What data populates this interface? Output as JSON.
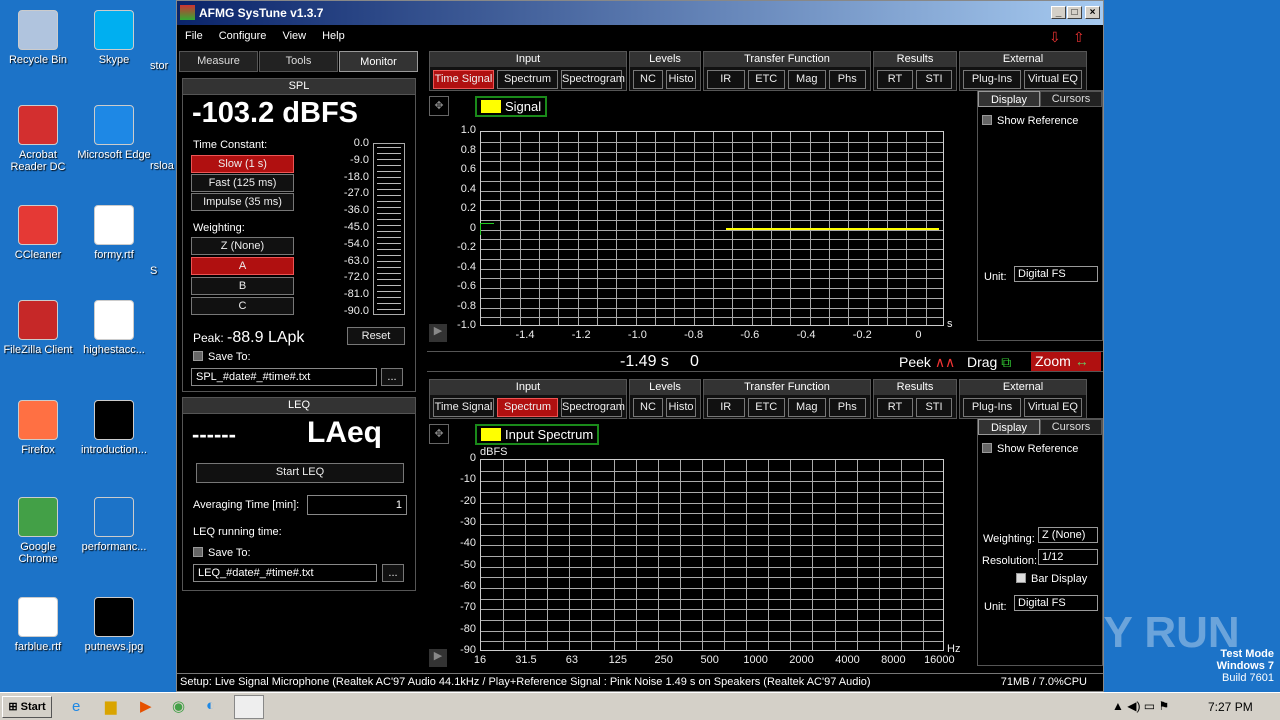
{
  "desktop": {
    "icons": [
      {
        "label": "Recycle Bin",
        "color": "#b0c4de"
      },
      {
        "label": "Skype",
        "color": "#00aff0"
      },
      {
        "label": "Acrobat Reader DC",
        "color": "#d32f2f"
      },
      {
        "label": "Microsoft Edge",
        "color": "#1e88e5"
      },
      {
        "label": "CCleaner",
        "color": "#e53935"
      },
      {
        "label": "formy.rtf",
        "color": "#ffffff"
      },
      {
        "label": "FileZilla Client",
        "color": "#c62828"
      },
      {
        "label": "highestacc...",
        "color": "#ffffff"
      },
      {
        "label": "Firefox",
        "color": "#ff7043"
      },
      {
        "label": "introduction...",
        "color": "#000000"
      },
      {
        "label": "Google Chrome",
        "color": "#43a047"
      },
      {
        "label": "performanc...",
        "color": "#1c73c8"
      },
      {
        "label": "farblue.rtf",
        "color": "#ffffff"
      },
      {
        "label": "putnews.jpg",
        "color": "#000000"
      }
    ],
    "partial": [
      "stor",
      "rsloa",
      "S"
    ]
  },
  "window": {
    "title": "AFMG SysTune v1.3.7",
    "menu": [
      "File",
      "Configure",
      "View",
      "Help"
    ]
  },
  "left": {
    "tabs": [
      "Measure",
      "Tools",
      "Monitor"
    ],
    "spl": {
      "header": "SPL",
      "value": "-103.2  dBFS",
      "time_constant_label": "Time Constant:",
      "time_constants": [
        "Slow (1 s)",
        "Fast (125 ms)",
        "Impulse (35 ms)"
      ],
      "weighting_label": "Weighting:",
      "weightings": [
        "Z (None)",
        "A",
        "B",
        "C"
      ],
      "meter_ticks": [
        "0.0",
        "-9.0",
        "-18.0",
        "-27.0",
        "-36.0",
        "-45.0",
        "-54.0",
        "-63.0",
        "-72.0",
        "-81.0",
        "-90.0"
      ],
      "peak_label": "Peak:",
      "peak_value": "-88.9 LApk",
      "reset": "Reset",
      "save_to": "Save To:",
      "file": "SPL_#date#_#time#.txt",
      "browse": "..."
    },
    "leq": {
      "header": "LEQ",
      "value": "------",
      "unit": "LAeq",
      "start": "Start LEQ",
      "averaging_label": "Averaging Time [min]:",
      "averaging_value": "1",
      "running_label": "LEQ running time:",
      "save_to": "Save To:",
      "file": "LEQ_#date#_#time#.txt",
      "browse": "..."
    }
  },
  "toolbar": {
    "groups": [
      {
        "title": "Input",
        "buttons": [
          "Time Signal",
          "Spectrum",
          "Spectrogram"
        ]
      },
      {
        "title": "Levels",
        "buttons": [
          "NC",
          "Histo"
        ]
      },
      {
        "title": "Transfer Function",
        "buttons": [
          "IR",
          "ETC",
          "Mag",
          "Phs"
        ]
      },
      {
        "title": "Results",
        "buttons": [
          "RT",
          "STI"
        ]
      },
      {
        "title": "External",
        "buttons": [
          "Plug-Ins",
          "Virtual EQ"
        ]
      }
    ]
  },
  "chart1": {
    "legend": "Signal",
    "legend_color": "#ffff00",
    "x_ticks": [
      "-1.4",
      "-1.2",
      "-1.0",
      "-0.8",
      "-0.6",
      "-0.4",
      "-0.2",
      "0"
    ],
    "x_unit": "s",
    "y_ticks": [
      "1.0",
      "0.8",
      "0.6",
      "0.4",
      "0.2",
      "0",
      "-0.2",
      "-0.4",
      "-0.6",
      "-0.8",
      "-1.0"
    ],
    "active": "Time Signal",
    "side": {
      "tabs": [
        "Display",
        "Cursors"
      ],
      "show_reference": "Show Reference",
      "unit_label": "Unit:",
      "unit": "Digital FS"
    }
  },
  "cursorbar": {
    "x": "-1.49 s",
    "y": "0",
    "peek": "Peek",
    "drag": "Drag",
    "zoom": "Zoom"
  },
  "chart2": {
    "legend": "Input Spectrum",
    "legend_color": "#ffff00",
    "y_unit": "dBFS",
    "x_unit": "Hz",
    "x_ticks": [
      "16",
      "31.5",
      "63",
      "125",
      "250",
      "500",
      "1000",
      "2000",
      "4000",
      "8000",
      "16000"
    ],
    "y_ticks": [
      "0",
      "-10",
      "-20",
      "-30",
      "-40",
      "-50",
      "-60",
      "-70",
      "-80",
      "-90"
    ],
    "active": "Spectrum",
    "side": {
      "tabs": [
        "Display",
        "Cursors"
      ],
      "show_reference": "Show Reference",
      "weighting_label": "Weighting:",
      "weighting": "Z (None)",
      "resolution_label": "Resolution:",
      "resolution": "1/12",
      "bar_display": "Bar Display",
      "unit_label": "Unit:",
      "unit": "Digital FS"
    }
  },
  "status": {
    "text": "Setup: Live Signal Microphone (Realtek AC'97 Audio 44.1kHz / Play+Reference Signal : Pink Noise  1.49 s on Speakers (Realtek AC'97 Audio)",
    "mem": "71MB / 7.0%CPU"
  },
  "taskbar": {
    "start": "Start",
    "time": "7:27 PM"
  },
  "watermark": {
    "text": "ANY RUN",
    "mode": "Test Mode",
    "os": "Windows 7",
    "build": "Build 7601"
  }
}
